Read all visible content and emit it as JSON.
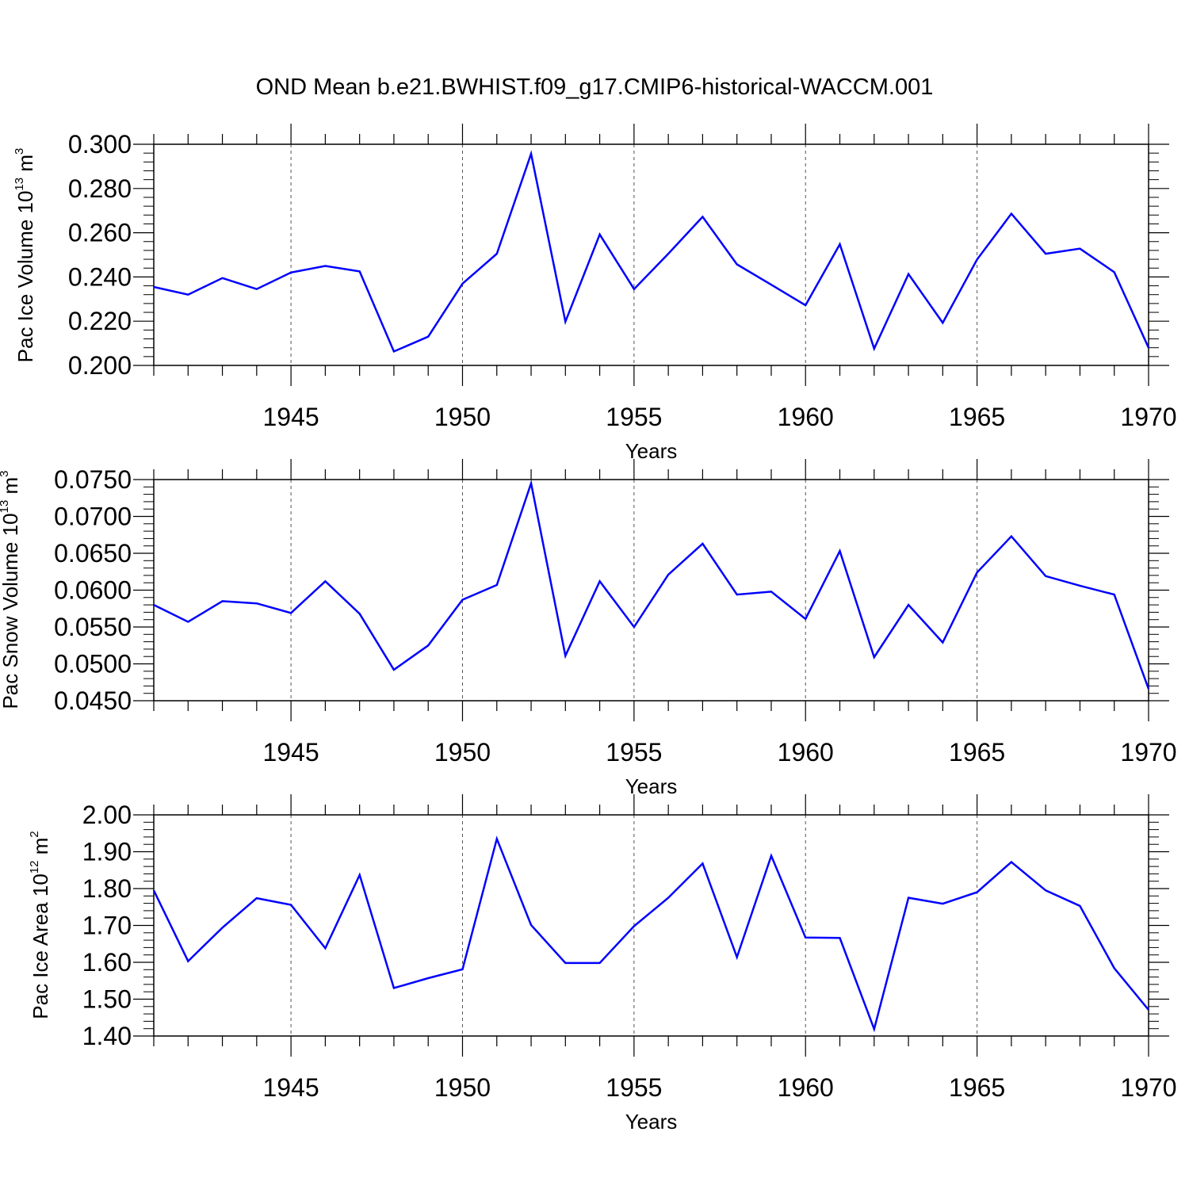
{
  "title": "OND Mean b.e21.BWHIST.f09_g17.CMIP6-historical-WACCM.001",
  "line_color": "#0000ff",
  "chart_data": [
    {
      "type": "line",
      "xlabel": "Years",
      "ylabel": {
        "text": "Pac Ice Volume 10",
        "sup": "13",
        "unit": " m",
        "unit_sup": "3"
      },
      "xlim": [
        1941,
        1970
      ],
      "ylim": [
        0.2,
        0.3
      ],
      "xticks": [
        "1945",
        "1950",
        "1955",
        "1960",
        "1965",
        "1970"
      ],
      "yticks": [
        "0.200",
        "0.220",
        "0.240",
        "0.260",
        "0.280",
        "0.300"
      ],
      "grid": "vertical dashed at labeled years",
      "x": [
        1941,
        1942,
        1943,
        1944,
        1945,
        1946,
        1947,
        1948,
        1949,
        1950,
        1951,
        1952,
        1953,
        1954,
        1955,
        1956,
        1957,
        1958,
        1959,
        1960,
        1961,
        1962,
        1963,
        1964,
        1965,
        1966,
        1967,
        1968,
        1969,
        1970
      ],
      "series": [
        {
          "values": [
            0.2355,
            0.232,
            0.2395,
            0.2345,
            0.242,
            0.245,
            0.2425,
            0.2063,
            0.213,
            0.237,
            0.2505,
            0.2957,
            0.2198,
            0.2592,
            0.2345,
            0.2505,
            0.2672,
            0.2457,
            0.2365,
            0.2272,
            0.2548,
            0.2076,
            0.2413,
            0.2193,
            0.2479,
            0.2686,
            0.2505,
            0.2528,
            0.2422,
            0.208
          ]
        }
      ]
    },
    {
      "type": "line",
      "xlabel": "Years",
      "ylabel": {
        "text": "Pac Snow Volume 10",
        "sup": "13",
        "unit": " m",
        "unit_sup": "3"
      },
      "xlim": [
        1941,
        1970
      ],
      "ylim": [
        0.045,
        0.075
      ],
      "xticks": [
        "1945",
        "1950",
        "1955",
        "1960",
        "1965",
        "1970"
      ],
      "yticks": [
        "0.0450",
        "0.0500",
        "0.0550",
        "0.0600",
        "0.0650",
        "0.0700",
        "0.0750"
      ],
      "grid": "vertical dashed at labeled years",
      "x": [
        1941,
        1942,
        1943,
        1944,
        1945,
        1946,
        1947,
        1948,
        1949,
        1950,
        1951,
        1952,
        1953,
        1954,
        1955,
        1956,
        1957,
        1958,
        1959,
        1960,
        1961,
        1962,
        1963,
        1964,
        1965,
        1966,
        1967,
        1968,
        1969,
        1970
      ],
      "series": [
        {
          "values": [
            0.058,
            0.0557,
            0.0585,
            0.0582,
            0.0569,
            0.0612,
            0.0568,
            0.0492,
            0.0525,
            0.0587,
            0.0607,
            0.0745,
            0.0511,
            0.0612,
            0.055,
            0.0621,
            0.0663,
            0.0594,
            0.0598,
            0.0561,
            0.0653,
            0.0509,
            0.058,
            0.0529,
            0.0624,
            0.0673,
            0.0619,
            0.0606,
            0.0594,
            0.0466
          ]
        }
      ]
    },
    {
      "type": "line",
      "xlabel": "Years",
      "ylabel": {
        "text": "Pac Ice Area 10",
        "sup": "12",
        "unit": " m",
        "unit_sup": "2"
      },
      "xlim": [
        1941,
        1970
      ],
      "ylim": [
        1.4,
        2.0
      ],
      "xticks": [
        "1945",
        "1950",
        "1955",
        "1960",
        "1965",
        "1970"
      ],
      "yticks": [
        "1.40",
        "1.50",
        "1.60",
        "1.70",
        "1.80",
        "1.90",
        "2.00"
      ],
      "grid": "vertical dashed at labeled years",
      "x": [
        1941,
        1942,
        1943,
        1944,
        1945,
        1946,
        1947,
        1948,
        1949,
        1950,
        1951,
        1952,
        1953,
        1954,
        1955,
        1956,
        1957,
        1958,
        1959,
        1960,
        1961,
        1962,
        1963,
        1964,
        1965,
        1966,
        1967,
        1968,
        1969,
        1970
      ],
      "series": [
        {
          "values": [
            1.795,
            1.603,
            1.694,
            1.774,
            1.756,
            1.638,
            1.837,
            1.53,
            1.557,
            1.581,
            1.935,
            1.701,
            1.598,
            1.598,
            1.698,
            1.775,
            1.868,
            1.614,
            1.889,
            1.667,
            1.666,
            1.419,
            1.775,
            1.759,
            1.79,
            1.872,
            1.795,
            1.753,
            1.584,
            1.471
          ]
        }
      ]
    }
  ]
}
